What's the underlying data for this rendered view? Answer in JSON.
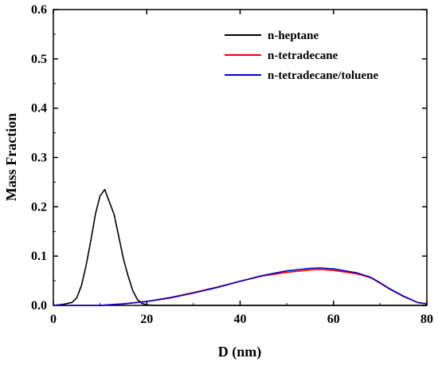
{
  "chart_data": {
    "type": "line",
    "xlabel": "D (nm)",
    "ylabel": "Mass Fraction",
    "xlim": [
      0,
      80
    ],
    "ylim": [
      0,
      0.6
    ],
    "xticks": [
      0,
      20,
      40,
      60,
      80
    ],
    "yticks": [
      0.0,
      0.1,
      0.2,
      0.3,
      0.4,
      0.5,
      0.6
    ],
    "xtick_labels": [
      "0",
      "20",
      "40",
      "60",
      "80"
    ],
    "ytick_labels": [
      "0.0",
      "0.1",
      "0.2",
      "0.3",
      "0.4",
      "0.5",
      "0.6"
    ],
    "grid": false,
    "legend_position": "top-right",
    "series": [
      {
        "name": "n-heptane",
        "color": "#000000",
        "x": [
          0,
          2,
          4,
          5,
          6,
          7,
          8,
          9,
          10,
          11,
          12,
          13,
          14,
          15,
          16,
          17,
          18,
          19,
          20,
          22,
          25,
          30,
          40,
          60,
          80
        ],
        "y": [
          0.0,
          0.002,
          0.006,
          0.015,
          0.04,
          0.08,
          0.13,
          0.185,
          0.222,
          0.235,
          0.21,
          0.185,
          0.14,
          0.095,
          0.06,
          0.03,
          0.012,
          0.004,
          0.001,
          0.0,
          0.0,
          0.0,
          0.0,
          0.0,
          0.0
        ]
      },
      {
        "name": "n-tetradecane",
        "color": "#ff0000",
        "x": [
          0,
          10,
          15,
          20,
          25,
          30,
          35,
          40,
          45,
          50,
          55,
          57,
          60,
          65,
          68,
          70,
          72,
          75,
          78,
          80
        ],
        "y": [
          0.0,
          0.0,
          0.003,
          0.008,
          0.016,
          0.026,
          0.037,
          0.049,
          0.06,
          0.067,
          0.072,
          0.073,
          0.071,
          0.064,
          0.056,
          0.045,
          0.033,
          0.018,
          0.006,
          0.003
        ]
      },
      {
        "name": "n-tetradecane/toluene",
        "color": "#0000cc",
        "x": [
          0,
          10,
          15,
          20,
          25,
          30,
          35,
          40,
          45,
          50,
          55,
          57,
          60,
          65,
          68,
          70,
          72,
          75,
          78,
          80
        ],
        "y": [
          0.0,
          0.0,
          0.003,
          0.008,
          0.015,
          0.025,
          0.036,
          0.049,
          0.061,
          0.07,
          0.075,
          0.076,
          0.074,
          0.066,
          0.057,
          0.046,
          0.034,
          0.019,
          0.006,
          0.003
        ]
      }
    ]
  }
}
